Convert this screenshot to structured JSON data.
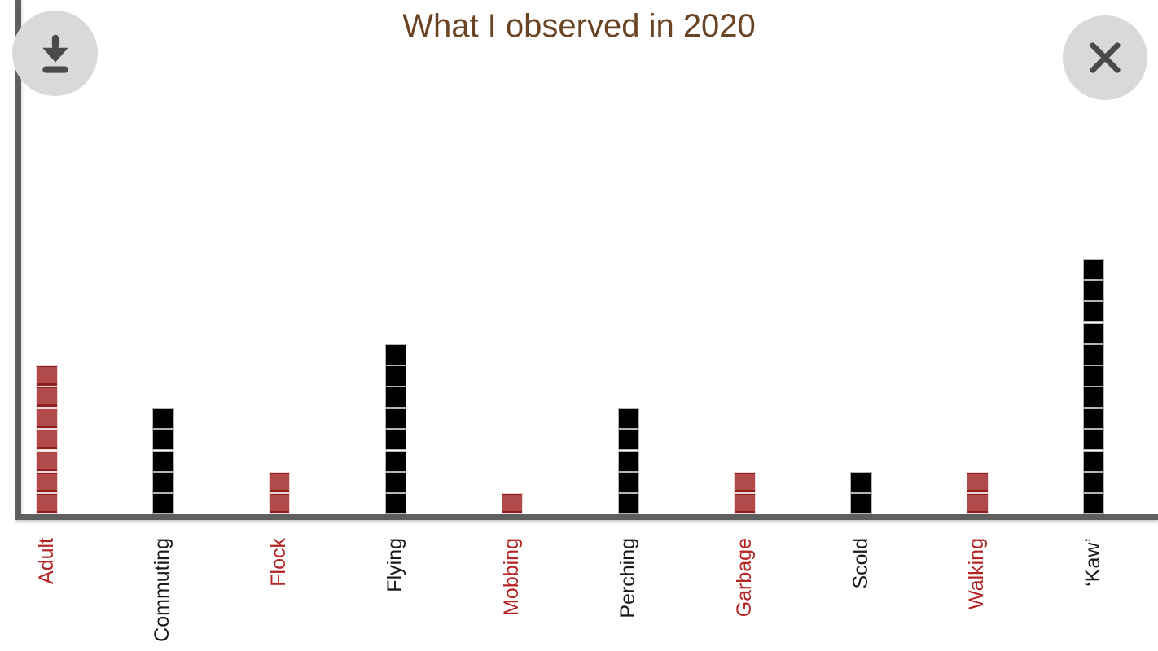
{
  "title": "What I observed in 2020",
  "toolbar": {
    "download_icon": "download-arrow-icon",
    "close_icon": "close-x-icon"
  },
  "colors": {
    "title": "#6b4423",
    "axis": "#5f5f5f",
    "button_bg": "#d9d9d9",
    "button_glyph": "#4a4a4a"
  },
  "chart_data": {
    "type": "bar",
    "style": "waffle-stack (1 square = 1 count)",
    "title": "What I observed in 2020",
    "xlabel": "",
    "ylabel": "",
    "categories": [
      "Adult",
      "Commuting",
      "Flock",
      "Flying",
      "Mobbing",
      "Perching",
      "Garbage",
      "Scold",
      "Walking",
      "‘Kaw’"
    ],
    "values": [
      7,
      5,
      2,
      8,
      1,
      5,
      2,
      2,
      2,
      12
    ],
    "color_keys": [
      "red",
      "black",
      "red",
      "black",
      "red",
      "black",
      "red",
      "black",
      "red",
      "black"
    ],
    "palette": {
      "red": {
        "fill": "#b14a4a",
        "edge": "#8e2020",
        "label": "#b42424"
      },
      "black": {
        "fill": "#000000",
        "edge": "#b3b3b3",
        "label": "#1a1a1a"
      }
    },
    "ylim": [
      0,
      12
    ],
    "grid": false,
    "legend": false,
    "x_tick_rotation": -90
  }
}
